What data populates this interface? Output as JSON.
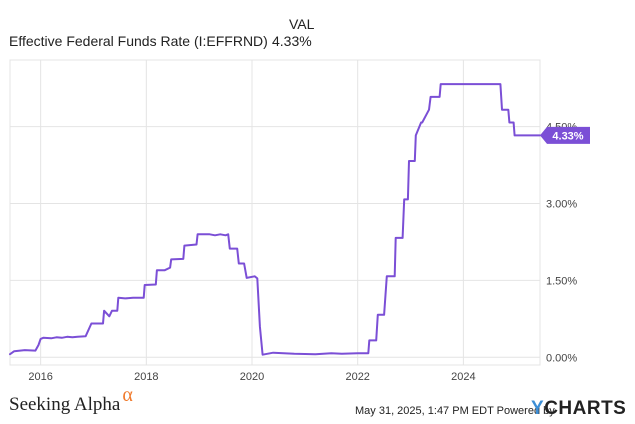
{
  "legend": {
    "column_header": "VAL",
    "series_name": "Effective Federal Funds Rate (I:EFFRND)",
    "series_value": "4.33%"
  },
  "footer": {
    "brand": "Seeking Alpha",
    "brand_symbol": "α",
    "timestamp": "May 31, 2025, 1:47 PM EDT",
    "powered_by": "Powered by",
    "provider_y": "Y",
    "provider_rest": "CHARTS"
  },
  "colors": {
    "line": "#7b4fd6",
    "grid": "#e4e4e4",
    "axis_text": "#444444",
    "brand_alpha": "#f07a2c",
    "ycharts_y": "#3d8fd6"
  },
  "chart_data": {
    "type": "line",
    "title": "",
    "xlabel": "",
    "ylabel": "",
    "x_ticks": [
      "2016",
      "2018",
      "2020",
      "2022",
      "2024"
    ],
    "y_ticks": [
      "0.00%",
      "1.50%",
      "3.00%",
      "4.50%"
    ],
    "xlim": [
      2015.42,
      2025.45
    ],
    "ylim": [
      -0.15,
      5.8
    ],
    "grid": true,
    "end_label": "4.33%",
    "series": [
      {
        "name": "Effective Federal Funds Rate (I:EFFRND)",
        "x": [
          2015.42,
          2015.5,
          2015.7,
          2015.9,
          2015.96,
          2016.0,
          2016.05,
          2016.2,
          2016.3,
          2016.4,
          2016.5,
          2016.6,
          2016.7,
          2016.85,
          2016.96,
          2017.0,
          2017.18,
          2017.2,
          2017.3,
          2017.35,
          2017.45,
          2017.47,
          2017.6,
          2017.75,
          2017.95,
          2017.97,
          2018.18,
          2018.2,
          2018.35,
          2018.45,
          2018.47,
          2018.7,
          2018.72,
          2018.95,
          2018.97,
          2019.2,
          2019.3,
          2019.4,
          2019.5,
          2019.55,
          2019.58,
          2019.65,
          2019.72,
          2019.75,
          2019.85,
          2019.9,
          2020.05,
          2020.1,
          2020.15,
          2020.2,
          2020.25,
          2020.4,
          2020.8,
          2021.2,
          2021.5,
          2021.7,
          2022.0,
          2022.2,
          2022.22,
          2022.35,
          2022.38,
          2022.5,
          2022.55,
          2022.7,
          2022.72,
          2022.85,
          2022.88,
          2022.95,
          2022.97,
          2023.08,
          2023.1,
          2023.2,
          2023.22,
          2023.35,
          2023.38,
          2023.55,
          2023.57,
          2024.7,
          2024.73,
          2024.85,
          2024.87,
          2024.95,
          2024.97,
          2025.45
        ],
        "y": [
          0.06,
          0.12,
          0.14,
          0.13,
          0.24,
          0.36,
          0.38,
          0.37,
          0.39,
          0.38,
          0.4,
          0.39,
          0.4,
          0.41,
          0.66,
          0.66,
          0.66,
          0.91,
          0.8,
          0.91,
          0.91,
          1.16,
          1.15,
          1.16,
          1.16,
          1.41,
          1.42,
          1.7,
          1.7,
          1.75,
          1.91,
          1.92,
          2.18,
          2.2,
          2.4,
          2.4,
          2.38,
          2.4,
          2.38,
          2.4,
          2.12,
          2.12,
          2.12,
          1.83,
          1.83,
          1.55,
          1.58,
          1.54,
          0.6,
          0.05,
          0.06,
          0.09,
          0.07,
          0.06,
          0.08,
          0.07,
          0.08,
          0.08,
          0.33,
          0.33,
          0.83,
          0.83,
          1.58,
          1.58,
          2.33,
          2.33,
          3.08,
          3.08,
          3.83,
          3.83,
          4.33,
          4.58,
          4.58,
          4.83,
          5.08,
          5.08,
          5.33,
          5.33,
          4.83,
          4.83,
          4.58,
          4.58,
          4.33,
          4.33
        ]
      }
    ]
  }
}
